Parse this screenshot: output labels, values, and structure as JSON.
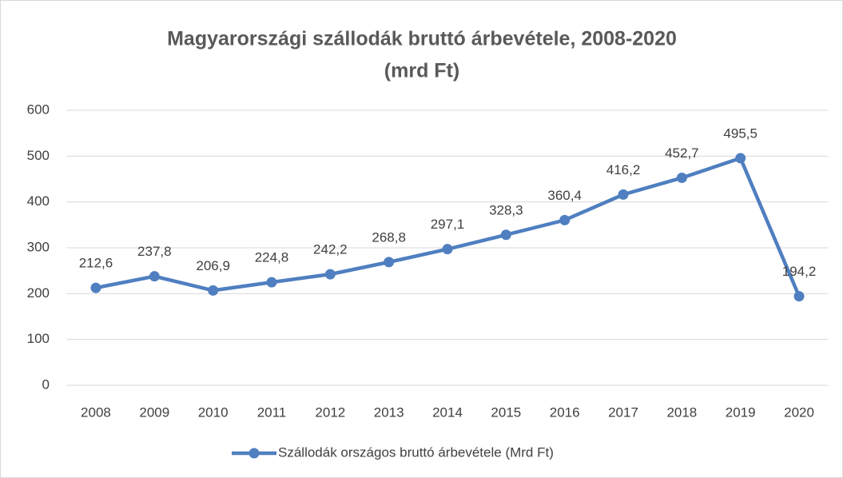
{
  "chart_data": {
    "type": "line",
    "title": [
      "Magyarországi szállodák bruttó árbevétele, 2008-2020",
      "(mrd Ft)"
    ],
    "categories": [
      "2008",
      "2009",
      "2010",
      "2011",
      "2012",
      "2013",
      "2014",
      "2015",
      "2016",
      "2017",
      "2018",
      "2019",
      "2020"
    ],
    "series": [
      {
        "name": "Szállodák országos bruttó árbevétele (Mrd Ft)",
        "color": "#4f7fc0",
        "values": [
          212.6,
          237.8,
          206.9,
          224.8,
          242.2,
          268.8,
          297.1,
          328.3,
          360.4,
          416.2,
          452.7,
          495.5,
          194.2
        ],
        "value_labels": [
          "212,6",
          "237,8",
          "206,9",
          "224,8",
          "242,2",
          "268,8",
          "297,1",
          "328,3",
          "360,4",
          "416,2",
          "452,7",
          "495,5",
          "194,2"
        ]
      }
    ],
    "ylim": [
      0,
      600
    ],
    "yticks": [
      0,
      100,
      200,
      300,
      400,
      500,
      600
    ],
    "grid": true,
    "legend": "bottom"
  }
}
